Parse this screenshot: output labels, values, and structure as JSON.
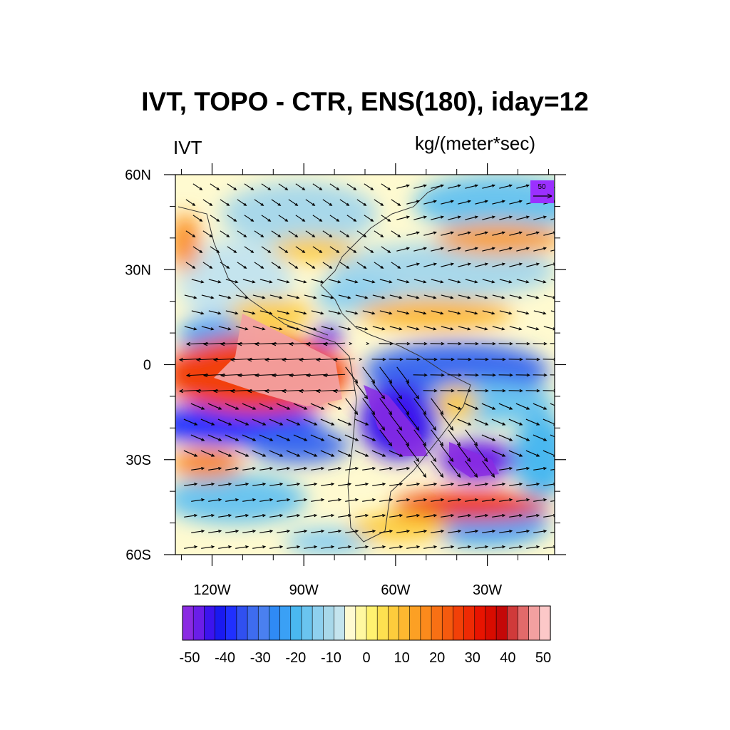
{
  "title": "IVT, TOPO - CTR, ENS(180), iday=12",
  "left_label": "IVT",
  "right_label": "kg/(meter*sec)",
  "reference_vector": {
    "label": "50",
    "color": "#9b30ff"
  },
  "y_ticks": [
    {
      "label": "60N",
      "lat": 60
    },
    {
      "label": "30N",
      "lat": 30
    },
    {
      "label": "0",
      "lat": 0
    },
    {
      "label": "30S",
      "lat": -30
    },
    {
      "label": "60S",
      "lat": -60
    }
  ],
  "x_ticks": [
    {
      "label": "120W",
      "lon": -120
    },
    {
      "label": "90W",
      "lon": -90
    },
    {
      "label": "60W",
      "lon": -60
    },
    {
      "label": "30W",
      "lon": -30
    }
  ],
  "colorbar": {
    "labels": [
      "-50",
      "-40",
      "-30",
      "-20",
      "-10",
      "0",
      "10",
      "20",
      "30",
      "40",
      "50"
    ],
    "colors": [
      "#8a2be2",
      "#6a1ee8",
      "#3c14ee",
      "#1a1af0",
      "#2030ff",
      "#3050f0",
      "#3e6cef",
      "#4a80f0",
      "#2f8af5",
      "#3aa0f5",
      "#4ab8f0",
      "#6ac4ef",
      "#8ed0ef",
      "#a8d8ea",
      "#c4e4ee",
      "#fffad0",
      "#fff8a0",
      "#fff270",
      "#fde050",
      "#fdcc3c",
      "#fdb830",
      "#fca024",
      "#fb8a1c",
      "#f87014",
      "#f55a0e",
      "#f24008",
      "#ee2a04",
      "#e81400",
      "#d80c00",
      "#c40808",
      "#d03a3a",
      "#e26a6a",
      "#f2a0a0",
      "#fcc8c8"
    ]
  },
  "map_extent": {
    "lon": [
      -132,
      -8
    ],
    "lat": [
      -60,
      60
    ]
  }
}
